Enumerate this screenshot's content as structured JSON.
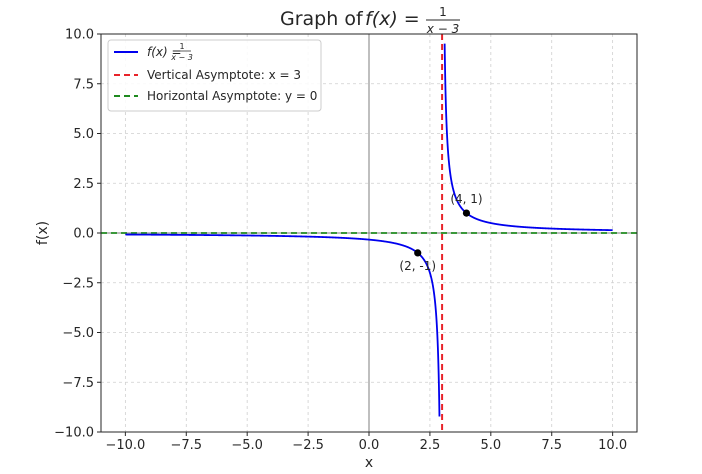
{
  "chart_data": {
    "type": "line",
    "title": {
      "prefix": "Graph of ",
      "func": "f(x) = ",
      "numerator": "1",
      "denominator": "x − 3"
    },
    "xlabel": "x",
    "ylabel": "f(x)",
    "xlim": [
      -11,
      11
    ],
    "ylim": [
      -10,
      10
    ],
    "xticks": [
      -10,
      -7.5,
      -5,
      -2.5,
      0,
      2.5,
      5,
      7.5,
      10
    ],
    "xtick_labels": [
      "−10.0",
      "−7.5",
      "−5.0",
      "−2.5",
      "0.0",
      "2.5",
      "5.0",
      "7.5",
      "10.0"
    ],
    "yticks": [
      -10,
      -7.5,
      -5,
      -2.5,
      0,
      2.5,
      5,
      7.5,
      10
    ],
    "ytick_labels": [
      "−10.0",
      "−7.5",
      "−5.0",
      "−2.5",
      "0.0",
      "2.5",
      "5.0",
      "7.5",
      "10.0"
    ],
    "grid": true,
    "legend_position": "top-left",
    "series": [
      {
        "name": "f(x) = 1/(x − 3)",
        "legend_prefix": "f(x) = ",
        "legend_num": "1",
        "legend_den": "x − 3",
        "color": "#0000ee",
        "style": "solid",
        "function": "1/(x-3)",
        "domain": [
          -10,
          10
        ],
        "x": [
          -10,
          -7.5,
          -5,
          -2.5,
          0,
          1,
          2,
          2.5,
          2.9,
          3.1,
          3.5,
          4,
          5,
          7.5,
          10
        ],
        "y": [
          -0.077,
          -0.095,
          -0.125,
          -0.182,
          -0.333,
          -0.5,
          -1,
          -2,
          -10,
          10,
          2,
          1,
          0.5,
          0.222,
          0.143
        ]
      },
      {
        "name": "Vertical Asymptote: x = 3",
        "legend_text": "Vertical Asymptote: x = 3",
        "color": "#e8232a",
        "style": "dashed",
        "x_const": 3
      },
      {
        "name": "Horizontal Asymptote: y = 0",
        "legend_text": "Horizontal Asymptote: y = 0",
        "color": "#1f8a1f",
        "style": "dashed",
        "y_const": 0
      }
    ],
    "points": [
      {
        "x": 2,
        "y": -1,
        "label": "(2, -1)"
      },
      {
        "x": 4,
        "y": 1,
        "label": "(4, 1)"
      }
    ],
    "reference_lines": {
      "x": 0,
      "y": 0,
      "color": "#7f7f7f"
    }
  }
}
